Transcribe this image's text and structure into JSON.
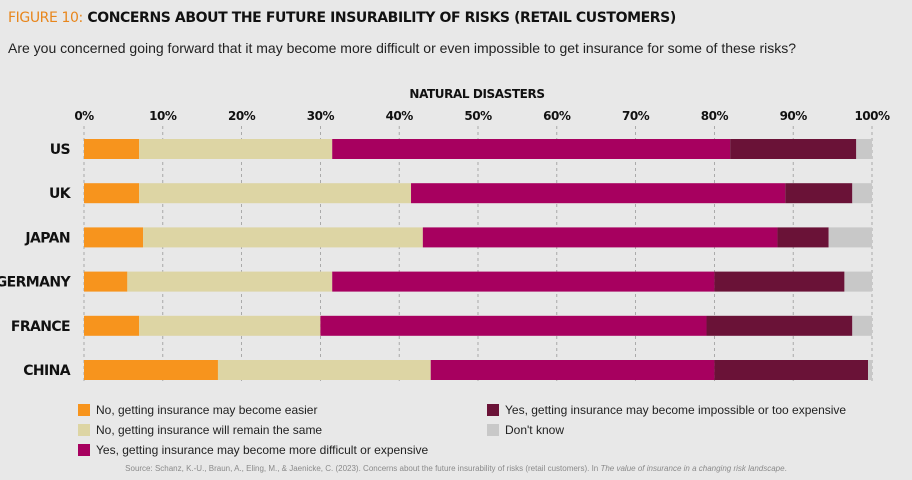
{
  "figure": {
    "number": "FIGURE 10:",
    "title": "CONCERNS ABOUT THE FUTURE INSURABILITY OF RISKS (RETAIL CUSTOMERS)",
    "subtitle": "Are you concerned going forward that it may become more difficult or even impossible to get insurance for some of these risks?"
  },
  "chart_data": {
    "type": "bar",
    "orientation": "horizontal",
    "stacked": true,
    "title": "NATURAL DISASTERS",
    "categories": [
      "US",
      "UK",
      "JAPAN",
      "GERMANY",
      "FRANCE",
      "CHINA"
    ],
    "xlim": [
      0,
      100
    ],
    "x_ticks": [
      "0%",
      "10%",
      "20%",
      "30%",
      "40%",
      "50%",
      "60%",
      "70%",
      "80%",
      "90%",
      "100%"
    ],
    "grid": "vertical dashed",
    "legend_position": "bottom",
    "series": [
      {
        "name": "No, getting insurance may become easier",
        "color": "#f7941d",
        "values": [
          7,
          7,
          7.5,
          5.5,
          7,
          17
        ]
      },
      {
        "name": "No, getting insurance will remain the same",
        "color": "#ddd5a4",
        "values": [
          24.5,
          34.5,
          35.5,
          26,
          23,
          27
        ]
      },
      {
        "name": "Yes, getting insurance may become more difficult or expensive",
        "color": "#a7005f",
        "values": [
          50.5,
          47.5,
          45,
          48.5,
          49,
          36
        ]
      },
      {
        "name": "Yes, getting insurance may become impossible or too expensive",
        "color": "#6a1237",
        "values": [
          16,
          8.5,
          6.5,
          16.5,
          18.5,
          19.5
        ]
      },
      {
        "name": "Don't know",
        "color": "#c8c8c8",
        "values": [
          2,
          2.5,
          5.5,
          3.5,
          2.5,
          0.5
        ]
      }
    ]
  },
  "source": {
    "prefix": "Source: Schanz, K.-U., Braun, A., Eling, M., & Jaenicke, C. (2023). Concerns about the future insurability of risks (retail customers). In ",
    "work": "The value of insurance in a changing risk landscape",
    "suffix": "."
  }
}
